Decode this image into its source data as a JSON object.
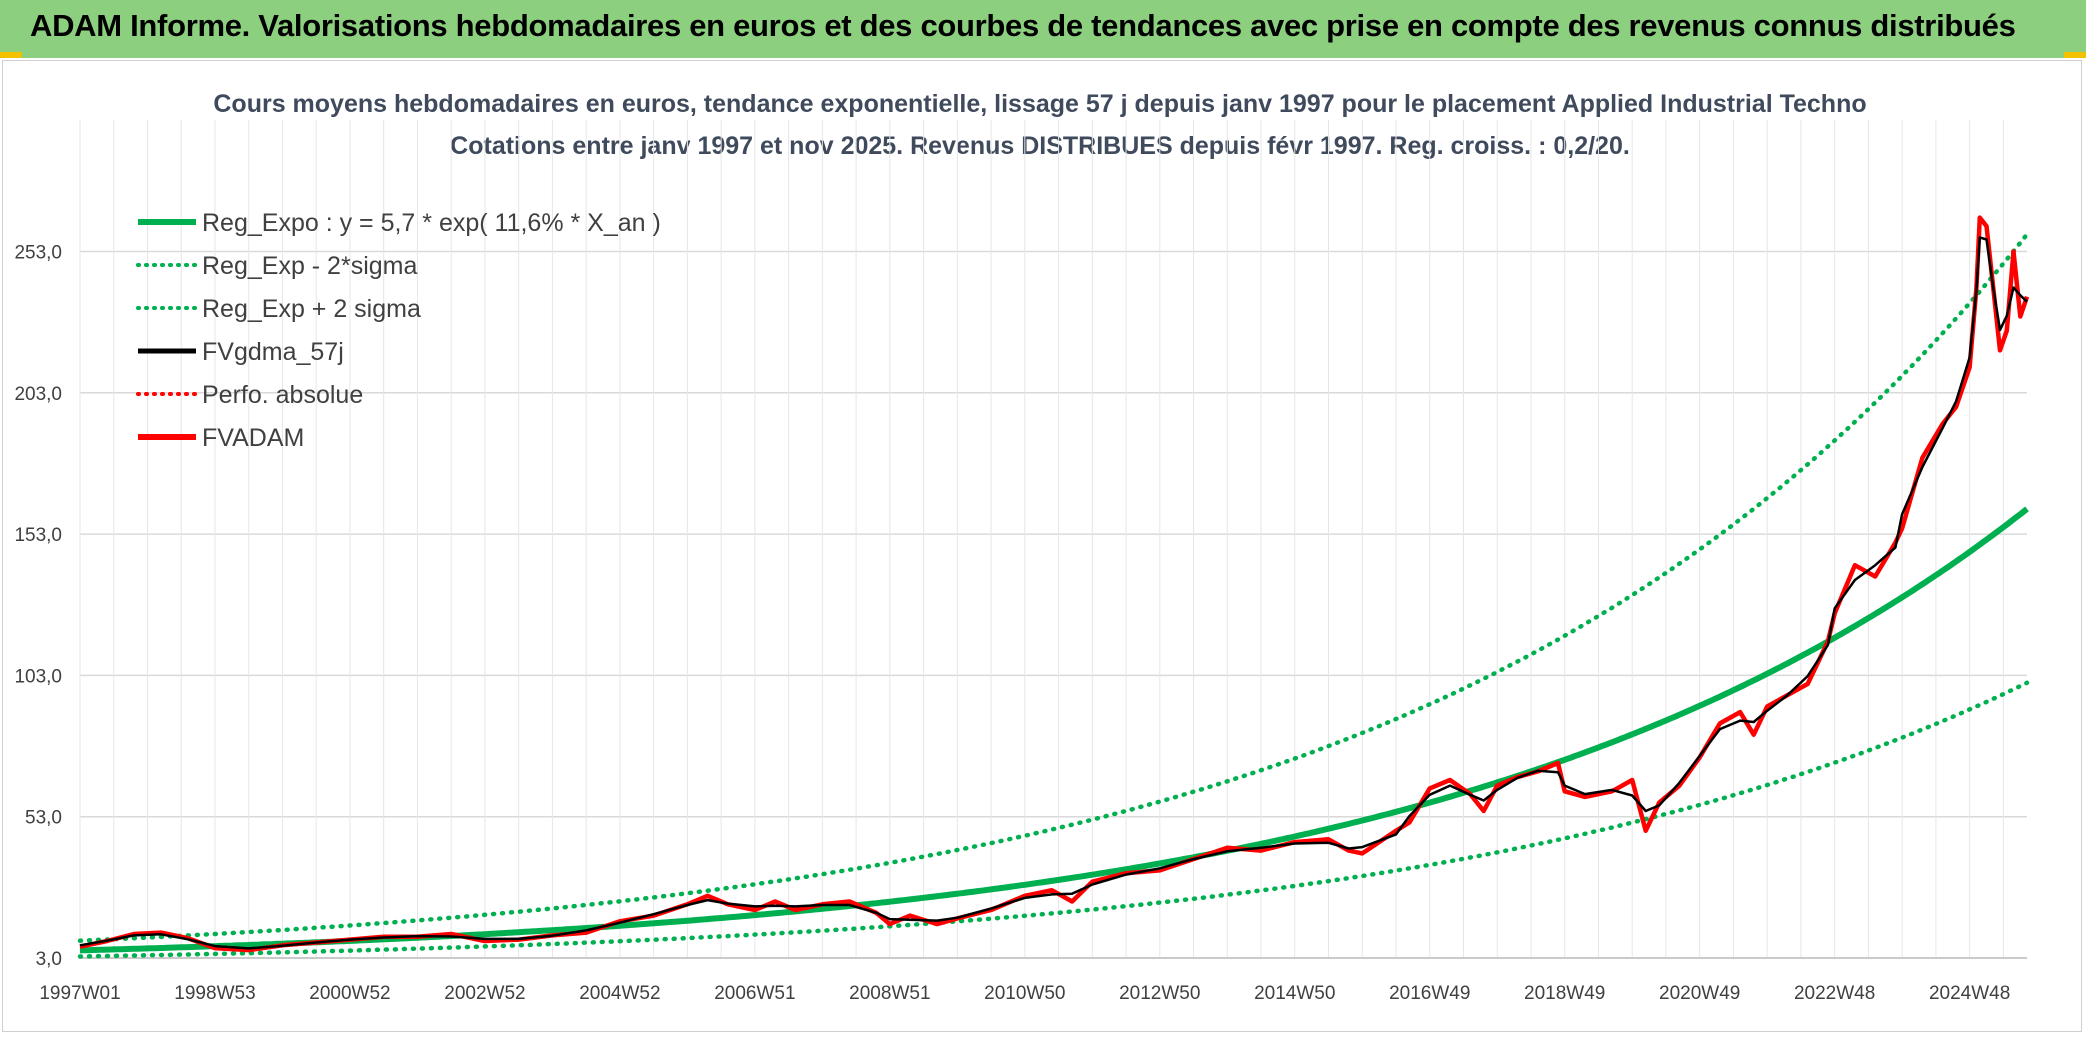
{
  "banner": {
    "title": "ADAM Informe. Valorisations hebdomadaires en euros et des courbes de tendances avec prise en compte des revenus connus distribués"
  },
  "colors": {
    "banner_bg": "#8cd07f",
    "green": "#00b050",
    "red": "#ff0000",
    "black": "#000000",
    "grid": "#d9d9d9",
    "accent_corner": "#f2c200"
  },
  "chart_data": {
    "type": "line",
    "title_line1": "Cours moyens hebdomadaires en euros, tendance exponentielle, lissage 57 j depuis janv 1997 pour le placement Applied Industrial Techno",
    "title_line2": "Cotations entre janv 1997 et nov 2025. Revenus DISTRIBUES depuis févr 1997. Reg. croiss. : 0,2/20.",
    "x_ticks": [
      "1997W01",
      "1998W53",
      "2000W52",
      "2002W52",
      "2004W52",
      "2006W51",
      "2008W51",
      "2010W50",
      "2012W50",
      "2014W50",
      "2016W49",
      "2018W49",
      "2020W49",
      "2022W48",
      "2024W48"
    ],
    "x_tick_years": [
      1997.0,
      1999.0,
      2001.0,
      2003.0,
      2005.0,
      2007.0,
      2009.0,
      2011.0,
      2013.0,
      2015.0,
      2017.0,
      2019.0,
      2021.0,
      2023.0,
      2025.0
    ],
    "x_range": [
      1997.0,
      2025.85
    ],
    "y_ticks": [
      "3,0",
      "53,0",
      "103,0",
      "153,0",
      "203,0",
      "253,0"
    ],
    "y_tick_values": [
      3,
      53,
      103,
      153,
      203,
      253
    ],
    "ylim": [
      3,
      253
    ],
    "grid": true,
    "legend_position": "top-left",
    "regression": {
      "a": 5.7,
      "rate": 0.116,
      "band_lower_factor": 0.62,
      "band_upper_factor": 1.6
    },
    "series": [
      {
        "name": "Reg_Expo : y = 5,7 * exp( 11,6% *  X_an )",
        "color": "#00b050",
        "style": "solid"
      },
      {
        "name": "Reg_Exp - 2*sigma",
        "color": "#00b050",
        "style": "dotted"
      },
      {
        "name": "Reg_Exp + 2 sigma",
        "color": "#00b050",
        "style": "dotted"
      },
      {
        "name": "FVgdma_57j",
        "color": "#000000",
        "style": "solid"
      },
      {
        "name": "Perfo. absolue",
        "color": "#ff0000",
        "style": "dotted"
      },
      {
        "name": "FVADAM",
        "color": "#ff0000",
        "style": "solid",
        "points": [
          [
            1997.0,
            7.0
          ],
          [
            1997.4,
            9.0
          ],
          [
            1997.8,
            11.5
          ],
          [
            1998.2,
            12.0
          ],
          [
            1998.6,
            10.0
          ],
          [
            1999.0,
            6.5
          ],
          [
            1999.5,
            5.8
          ],
          [
            2000.0,
            7.5
          ],
          [
            2000.5,
            8.5
          ],
          [
            2001.0,
            9.5
          ],
          [
            2001.5,
            10.5
          ],
          [
            2002.0,
            10.5
          ],
          [
            2002.5,
            11.5
          ],
          [
            2003.0,
            9.0
          ],
          [
            2003.5,
            9.5
          ],
          [
            2004.0,
            11.0
          ],
          [
            2004.5,
            12.0
          ],
          [
            2005.0,
            16.0
          ],
          [
            2005.5,
            18.0
          ],
          [
            2006.0,
            22.0
          ],
          [
            2006.3,
            25.0
          ],
          [
            2006.6,
            22.0
          ],
          [
            2007.0,
            20.0
          ],
          [
            2007.3,
            23.0
          ],
          [
            2007.6,
            20.0
          ],
          [
            2008.0,
            22.0
          ],
          [
            2008.4,
            23.0
          ],
          [
            2008.8,
            19.0
          ],
          [
            2009.0,
            15.0
          ],
          [
            2009.3,
            18.0
          ],
          [
            2009.7,
            15.0
          ],
          [
            2010.0,
            17.0
          ],
          [
            2010.5,
            20.0
          ],
          [
            2011.0,
            25.0
          ],
          [
            2011.4,
            27.0
          ],
          [
            2011.7,
            23.0
          ],
          [
            2012.0,
            30.0
          ],
          [
            2012.5,
            33.0
          ],
          [
            2013.0,
            34.0
          ],
          [
            2013.5,
            38.0
          ],
          [
            2014.0,
            42.0
          ],
          [
            2014.5,
            41.0
          ],
          [
            2015.0,
            44.0
          ],
          [
            2015.5,
            45.0
          ],
          [
            2015.8,
            41.0
          ],
          [
            2016.0,
            40.0
          ],
          [
            2016.5,
            48.0
          ],
          [
            2016.7,
            51.0
          ],
          [
            2017.0,
            63.0
          ],
          [
            2017.3,
            66.0
          ],
          [
            2017.6,
            61.0
          ],
          [
            2017.8,
            55.0
          ],
          [
            2018.0,
            64.0
          ],
          [
            2018.3,
            67.0
          ],
          [
            2018.6,
            69.0
          ],
          [
            2018.9,
            72.0
          ],
          [
            2019.0,
            62.0
          ],
          [
            2019.3,
            60.0
          ],
          [
            2019.7,
            62.0
          ],
          [
            2020.0,
            66.0
          ],
          [
            2020.2,
            48.0
          ],
          [
            2020.4,
            58.0
          ],
          [
            2020.7,
            64.0
          ],
          [
            2021.0,
            74.0
          ],
          [
            2021.3,
            86.0
          ],
          [
            2021.6,
            90.0
          ],
          [
            2021.8,
            82.0
          ],
          [
            2022.0,
            92.0
          ],
          [
            2022.3,
            96.0
          ],
          [
            2022.6,
            100.0
          ],
          [
            2022.9,
            115.0
          ],
          [
            2023.0,
            125.0
          ],
          [
            2023.3,
            142.0
          ],
          [
            2023.6,
            138.0
          ],
          [
            2023.9,
            150.0
          ],
          [
            2024.0,
            155.0
          ],
          [
            2024.3,
            180.0
          ],
          [
            2024.6,
            192.0
          ],
          [
            2024.8,
            198.0
          ],
          [
            2025.0,
            212.0
          ],
          [
            2025.1,
            240.0
          ],
          [
            2025.15,
            265.0
          ],
          [
            2025.25,
            262.0
          ],
          [
            2025.35,
            240.0
          ],
          [
            2025.45,
            218.0
          ],
          [
            2025.55,
            225.0
          ],
          [
            2025.65,
            253.0
          ],
          [
            2025.75,
            230.0
          ],
          [
            2025.85,
            237.0
          ]
        ]
      }
    ]
  }
}
